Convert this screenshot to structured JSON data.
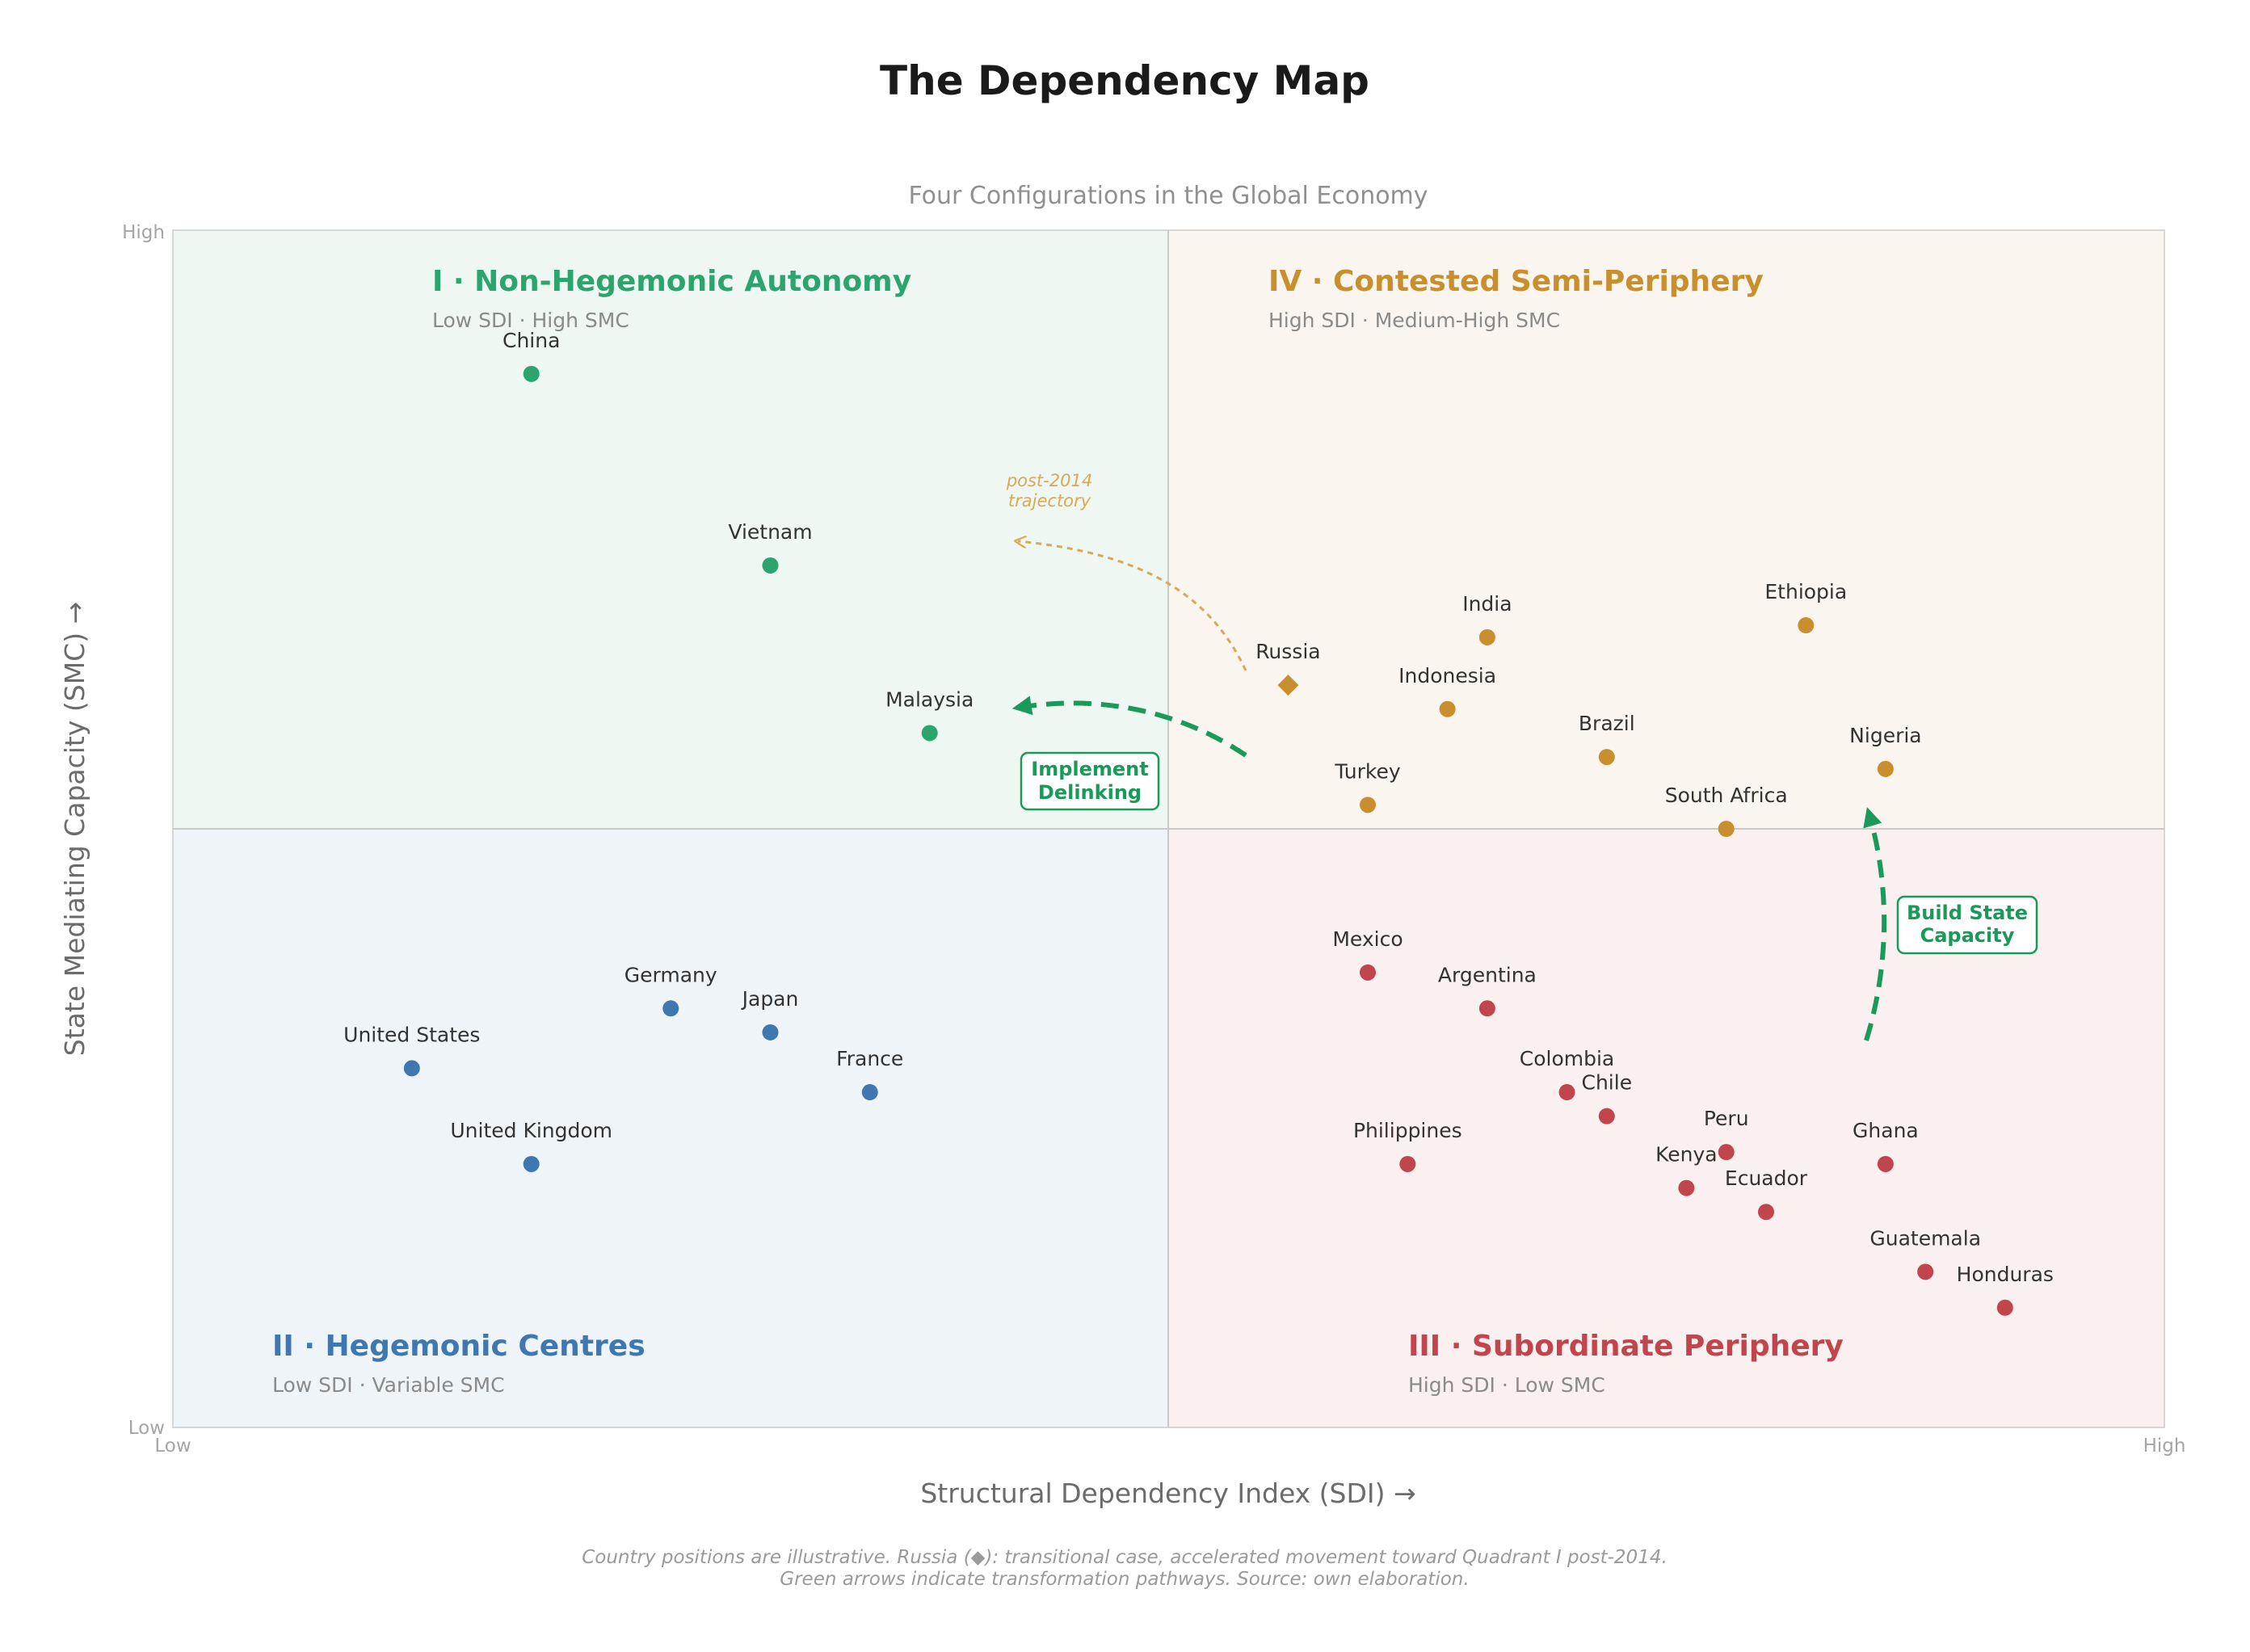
{
  "chart_data": {
    "type": "scatter",
    "title": "The Dependency Map",
    "subtitle": "Four Configurations in the Global Economy",
    "xlabel": "Structural Dependency Index (SDI)  →",
    "ylabel": "State Mediating Capacity (SMC)  →",
    "xlim": [
      0,
      10
    ],
    "ylim": [
      0,
      10
    ],
    "x_ticks": [
      "Low",
      "High"
    ],
    "y_ticks": [
      "Low",
      "High"
    ],
    "grid": false,
    "quadrants": [
      {
        "id": "I",
        "title": "I · Non-Hegemonic Autonomy",
        "subtitle": "Low SDI · High SMC",
        "color": "#2ca46e",
        "fill": "#eef7f1"
      },
      {
        "id": "II",
        "title": "II · Hegemonic Centres",
        "subtitle": "Low SDI · Variable SMC",
        "color": "#3f78b0",
        "fill": "#eff4f8"
      },
      {
        "id": "III",
        "title": "III · Subordinate Periphery",
        "subtitle": "High SDI · Low SMC",
        "color": "#c0454d",
        "fill": "#f9f0ef"
      },
      {
        "id": "IV",
        "title": "IV · Contested Semi-Periphery",
        "subtitle": "High SDI · Medium-High SMC",
        "color": "#c98f2e",
        "fill": "#faf6ef"
      }
    ],
    "series": [
      {
        "name": "Quadrant I",
        "color": "#2ca46e",
        "points": [
          {
            "label": "China",
            "x": 1.8,
            "y": 8.8
          },
          {
            "label": "Vietnam",
            "x": 3.0,
            "y": 7.2
          },
          {
            "label": "Malaysia",
            "x": 3.8,
            "y": 5.8
          }
        ]
      },
      {
        "name": "Quadrant II",
        "color": "#3f78b0",
        "points": [
          {
            "label": "United States",
            "x": 1.2,
            "y": 3.0
          },
          {
            "label": "United Kingdom",
            "x": 1.8,
            "y": 2.2
          },
          {
            "label": "Germany",
            "x": 2.5,
            "y": 3.5
          },
          {
            "label": "Japan",
            "x": 3.0,
            "y": 3.3
          },
          {
            "label": "France",
            "x": 3.5,
            "y": 2.8
          }
        ]
      },
      {
        "name": "Quadrant III",
        "color": "#c0454d",
        "points": [
          {
            "label": "Mexico",
            "x": 6.0,
            "y": 3.8
          },
          {
            "label": "Argentina",
            "x": 6.6,
            "y": 3.5
          },
          {
            "label": "Colombia",
            "x": 7.0,
            "y": 2.8
          },
          {
            "label": "Chile",
            "x": 7.2,
            "y": 2.6
          },
          {
            "label": "Philippines",
            "x": 6.2,
            "y": 2.2
          },
          {
            "label": "Peru",
            "x": 7.8,
            "y": 2.3
          },
          {
            "label": "Kenya",
            "x": 7.6,
            "y": 2.0
          },
          {
            "label": "Ecuador",
            "x": 8.0,
            "y": 1.8
          },
          {
            "label": "Ghana",
            "x": 8.6,
            "y": 2.2
          },
          {
            "label": "Guatemala",
            "x": 8.8,
            "y": 1.3
          },
          {
            "label": "Honduras",
            "x": 9.2,
            "y": 1.0
          }
        ]
      },
      {
        "name": "Quadrant IV",
        "color": "#c98f2e",
        "points": [
          {
            "label": "Russia",
            "x": 5.6,
            "y": 6.2,
            "marker": "diamond"
          },
          {
            "label": "India",
            "x": 6.6,
            "y": 6.6
          },
          {
            "label": "Indonesia",
            "x": 6.4,
            "y": 6.0
          },
          {
            "label": "Brazil",
            "x": 7.2,
            "y": 5.6
          },
          {
            "label": "Turkey",
            "x": 6.0,
            "y": 5.2
          },
          {
            "label": "South Africa",
            "x": 7.8,
            "y": 5.0
          },
          {
            "label": "Ethiopia",
            "x": 8.2,
            "y": 6.7
          },
          {
            "label": "Nigeria",
            "x": 8.6,
            "y": 5.5
          }
        ]
      }
    ],
    "annotations": [
      {
        "text": "Implement\nDelinking",
        "color": "#1a9a5a"
      },
      {
        "text": "Build State\nCapacity",
        "color": "#1a9a5a"
      },
      {
        "text": "post-2014\ntrajectory",
        "color": "#d9a95a"
      }
    ],
    "footnote": [
      "Country positions are illustrative. Russia (◆): transitional case, accelerated movement toward Quadrant I post-2014.",
      "Green arrows indicate transformation pathways. Source: own elaboration."
    ]
  }
}
